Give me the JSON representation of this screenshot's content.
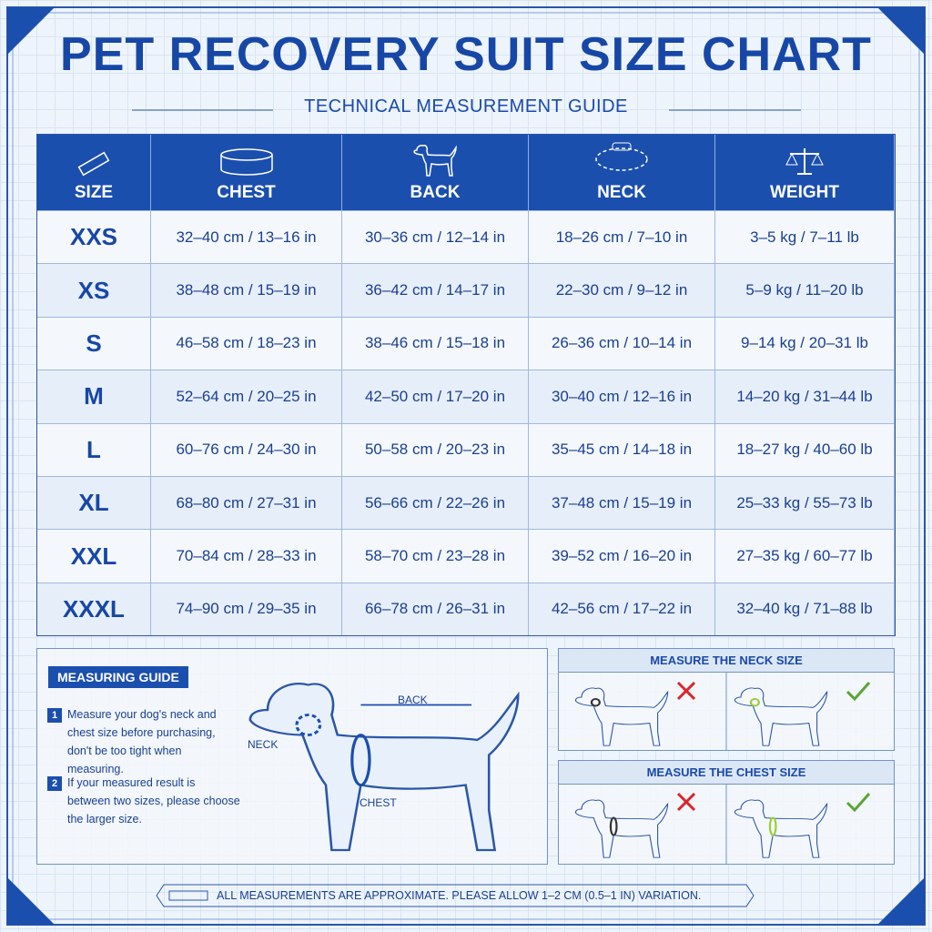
{
  "header": {
    "title": "PET RECOVERY SUIT SIZE CHART",
    "subtitle": "TECHNICAL MEASUREMENT GUIDE"
  },
  "table": {
    "columns": [
      "SIZE",
      "CHEST",
      "BACK",
      "NECK",
      "WEIGHT"
    ],
    "rows": [
      [
        "XXS",
        "32–40 cm / 13–16 in",
        "30–36 cm / 12–14 in",
        "18–26 cm / 7–10 in",
        "3–5 kg / 7–11 lb"
      ],
      [
        "XS",
        "38–48 cm / 15–19 in",
        "36–42 cm / 14–17 in",
        "22–30 cm / 9–12 in",
        "5–9 kg / 11–20 lb"
      ],
      [
        "S",
        "46–58 cm / 18–23 in",
        "38–46 cm / 15–18 in",
        "26–36 cm / 10–14 in",
        "9–14 kg / 20–31 lb"
      ],
      [
        "M",
        "52–64 cm / 20–25 in",
        "42–50 cm / 17–20 in",
        "30–40 cm / 12–16 in",
        "14–20 kg / 31–44 lb"
      ],
      [
        "L",
        "60–76 cm / 24–30 in",
        "50–58 cm / 20–23 in",
        "35–45 cm / 14–18 in",
        "18–27 kg / 40–60 lb"
      ],
      [
        "XL",
        "68–80 cm / 27–31 in",
        "56–66 cm / 22–26 in",
        "37–48 cm / 15–19 in",
        "25–33 kg / 55–73 lb"
      ],
      [
        "XXL",
        "70–84 cm / 28–33 in",
        "58–70 cm / 23–28 in",
        "39–52 cm / 16–20 in",
        "27–35 kg / 60–77 lb"
      ],
      [
        "XXXL",
        "74–90 cm / 29–35 in",
        "66–78 cm / 26–31 in",
        "42–56 cm / 17–22 in",
        "32–40 kg / 71–88 lb"
      ]
    ]
  },
  "guide": {
    "title": "MEASURING GUIDE",
    "steps": [
      {
        "number": "1",
        "text": "Measure your dog's neck and chest size before purchasing, don't be too tight when measuring."
      },
      {
        "number": "2",
        "text": "If your measured result is between two sizes, please choose the larger size."
      }
    ],
    "labels": {
      "back": "BACK",
      "neck": "NECK",
      "chest": "CHEST"
    }
  },
  "panels": [
    {
      "title": "MEASURE THE NECK SIZE"
    },
    {
      "title": "MEASURE THE CHEST SIZE"
    }
  ],
  "footer": "ALL MEASUREMENTS ARE APPROXIMATE. PLEASE ALLOW 1–2 CM (0.5–1 IN) VARIATION."
}
